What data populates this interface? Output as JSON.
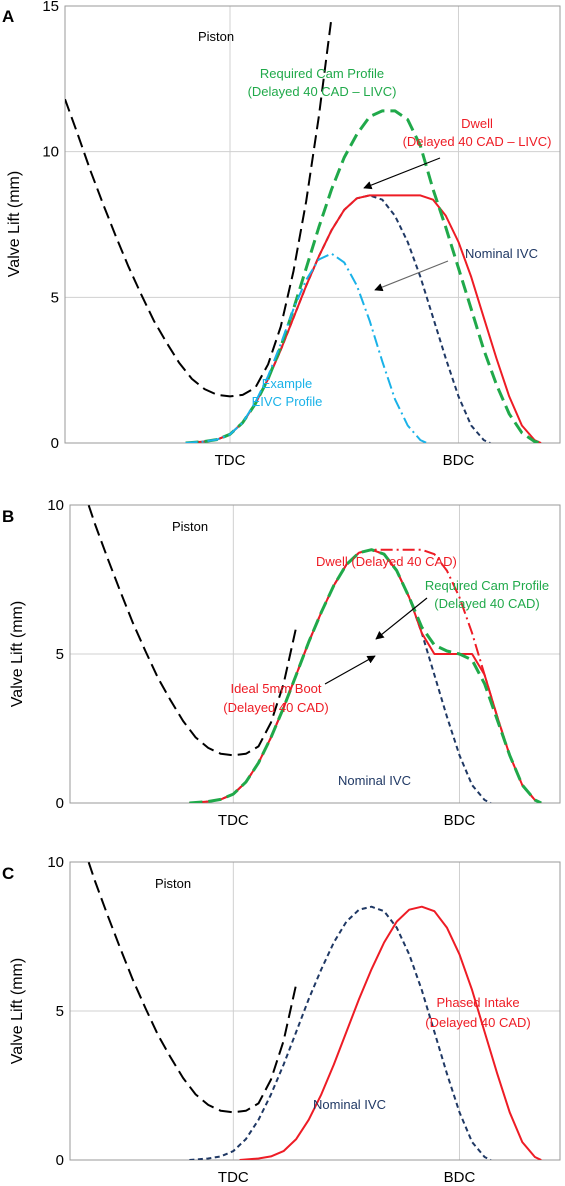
{
  "chart_data": [
    {
      "type": "line",
      "panel_label": "A",
      "ylabel": "Valve Lift (mm)",
      "ylim": [
        0,
        15
      ],
      "yticks": [
        "0",
        "5",
        "10",
        "15"
      ],
      "xlim": [
        -130,
        260
      ],
      "x_markers": [
        {
          "label": "TDC",
          "x": 0
        },
        {
          "label": "BDC",
          "x": 180
        }
      ],
      "grid": true,
      "series": [
        {
          "name": "Piston",
          "style": "long-dash",
          "color": "#000000",
          "x": [
            -130,
            -120,
            -110,
            -100,
            -90,
            -80,
            -70,
            -60,
            -50,
            -40,
            -30,
            -20,
            -10,
            0,
            10,
            20,
            30,
            40,
            50,
            60,
            70,
            80
          ],
          "y": [
            11.8,
            10.6,
            9.35,
            8.2,
            7.1,
            6.05,
            5.1,
            4.2,
            3.45,
            2.75,
            2.2,
            1.85,
            1.65,
            1.6,
            1.65,
            1.9,
            2.7,
            4.0,
            5.9,
            8.3,
            11.2,
            14.6
          ]
        },
        {
          "name": "Nominal IVC",
          "style": "short-dash",
          "color": "#1f3864",
          "x": [
            -35,
            -20,
            -10,
            0,
            10,
            20,
            30,
            40,
            50,
            60,
            70,
            80,
            90,
            100,
            110,
            120,
            130,
            140,
            150,
            160,
            170,
            180,
            190,
            200,
            205
          ],
          "y": [
            0,
            0.05,
            0.12,
            0.3,
            0.7,
            1.35,
            2.2,
            3.2,
            4.3,
            5.4,
            6.4,
            7.3,
            8.0,
            8.4,
            8.5,
            8.35,
            7.8,
            6.9,
            5.7,
            4.3,
            2.9,
            1.6,
            0.6,
            0.1,
            0
          ]
        },
        {
          "name": "Dwell (Delayed 40 CAD – LIVC)",
          "style": "solid",
          "color": "#ee1c25",
          "x": [
            -35,
            -20,
            -10,
            0,
            10,
            20,
            30,
            40,
            50,
            60,
            70,
            80,
            90,
            100,
            110,
            120,
            130,
            140,
            150,
            160,
            170,
            180,
            190,
            200,
            210,
            220,
            230,
            240,
            245
          ],
          "y": [
            0,
            0.05,
            0.12,
            0.3,
            0.7,
            1.35,
            2.2,
            3.2,
            4.3,
            5.4,
            6.4,
            7.3,
            8.0,
            8.4,
            8.5,
            8.5,
            8.5,
            8.5,
            8.5,
            8.35,
            7.8,
            6.9,
            5.7,
            4.3,
            2.9,
            1.6,
            0.6,
            0.1,
            0
          ]
        },
        {
          "name": "Required Cam Profile (Delayed 40 CAD – LIVC)",
          "style": "long-dash",
          "color": "#20a94a",
          "x": [
            -35,
            -20,
            -10,
            0,
            10,
            20,
            30,
            40,
            50,
            60,
            70,
            80,
            90,
            100,
            110,
            120,
            130,
            140,
            150,
            160,
            170,
            180,
            190,
            200,
            210,
            220,
            230,
            240,
            245
          ],
          "y": [
            0,
            0.05,
            0.12,
            0.3,
            0.7,
            1.35,
            2.2,
            3.3,
            4.6,
            6.0,
            7.4,
            8.7,
            9.8,
            10.6,
            11.2,
            11.4,
            11.4,
            11.1,
            10.2,
            8.7,
            7.4,
            6.0,
            4.6,
            3.2,
            2.0,
            1.0,
            0.35,
            0.05,
            0
          ]
        },
        {
          "name": "Example EIVC Profile",
          "style": "dash-dot",
          "color": "#1ab2e8",
          "x": [
            -35,
            -20,
            -10,
            0,
            10,
            20,
            30,
            40,
            50,
            60,
            70,
            80,
            90,
            100,
            110,
            120,
            130,
            140,
            150,
            155
          ],
          "y": [
            0,
            0.05,
            0.12,
            0.3,
            0.7,
            1.4,
            2.3,
            3.4,
            4.6,
            5.6,
            6.3,
            6.5,
            6.2,
            5.4,
            4.2,
            2.8,
            1.5,
            0.6,
            0.1,
            0
          ]
        }
      ],
      "annotations": [
        {
          "text": [
            "Piston"
          ],
          "color": "#000000"
        },
        {
          "text": [
            "Required Cam Profile",
            "(Delayed 40 CAD – LIVC)"
          ],
          "color": "#20a94a"
        },
        {
          "text": [
            "Dwell",
            "(Delayed 40 CAD – LIVC)"
          ],
          "color": "#ee1c25"
        },
        {
          "text": [
            "Nominal IVC"
          ],
          "color": "#1f3864"
        },
        {
          "text": [
            "Example",
            "EIVC Profile"
          ],
          "color": "#1ab2e8"
        }
      ]
    },
    {
      "type": "line",
      "panel_label": "B",
      "ylabel": "Valve Lift (mm)",
      "ylim": [
        0,
        10
      ],
      "yticks": [
        "0",
        "5",
        "10"
      ],
      "xlim": [
        -130,
        260
      ],
      "x_markers": [
        {
          "label": "TDC",
          "x": 0
        },
        {
          "label": "BDC",
          "x": 180
        }
      ],
      "grid": true,
      "series": [
        {
          "name": "Piston",
          "style": "long-dash",
          "color": "#000000",
          "x": [
            -130,
            -120,
            -110,
            -100,
            -90,
            -80,
            -70,
            -60,
            -50,
            -40,
            -30,
            -20,
            -10,
            0,
            10,
            20,
            30,
            40,
            50
          ],
          "y": [
            11.8,
            10.6,
            9.35,
            8.2,
            7.1,
            6.05,
            5.1,
            4.2,
            3.45,
            2.75,
            2.2,
            1.85,
            1.65,
            1.6,
            1.65,
            1.9,
            2.7,
            4.0,
            5.9
          ]
        },
        {
          "name": "Nominal IVC",
          "style": "short-dash",
          "color": "#1f3864",
          "x": [
            -35,
            -20,
            -10,
            0,
            10,
            20,
            30,
            40,
            50,
            60,
            70,
            80,
            90,
            100,
            110,
            120,
            130,
            140,
            150,
            160,
            170,
            180,
            190,
            200,
            205
          ],
          "y": [
            0,
            0.05,
            0.12,
            0.3,
            0.7,
            1.35,
            2.2,
            3.2,
            4.3,
            5.4,
            6.4,
            7.3,
            8.0,
            8.4,
            8.5,
            8.35,
            7.8,
            6.9,
            5.7,
            4.3,
            2.9,
            1.6,
            0.6,
            0.1,
            0
          ]
        },
        {
          "name": "Dwell (Delayed 40 CAD)",
          "style": "dash-dot",
          "color": "#ee1c25",
          "x": [
            100,
            110,
            120,
            130,
            140,
            150,
            160,
            170,
            180,
            190,
            200,
            210,
            220,
            230,
            240,
            245
          ],
          "y": [
            8.4,
            8.5,
            8.5,
            8.5,
            8.5,
            8.5,
            8.35,
            7.8,
            6.9,
            5.7,
            4.3,
            2.9,
            1.6,
            0.6,
            0.1,
            0
          ]
        },
        {
          "name": "Ideal 5mm Boot (Delayed 40 CAD)",
          "style": "solid",
          "color": "#ee1c25",
          "x": [
            -35,
            -20,
            -10,
            0,
            10,
            20,
            30,
            40,
            50,
            60,
            70,
            80,
            90,
            100,
            110,
            120,
            130,
            140,
            150,
            160,
            170,
            180,
            190,
            200,
            210,
            220,
            230,
            240,
            245
          ],
          "y": [
            0,
            0.05,
            0.12,
            0.3,
            0.7,
            1.35,
            2.2,
            3.2,
            4.3,
            5.4,
            6.4,
            7.3,
            8.0,
            8.4,
            8.5,
            8.35,
            7.8,
            6.9,
            5.7,
            5.0,
            5.0,
            5.0,
            5.0,
            4.3,
            2.9,
            1.6,
            0.6,
            0.1,
            0
          ]
        },
        {
          "name": "Required Cam Profile (Delayed 40 CAD)",
          "style": "long-dash",
          "color": "#20a94a",
          "x": [
            -35,
            -20,
            -10,
            0,
            10,
            20,
            30,
            40,
            50,
            60,
            70,
            80,
            90,
            100,
            110,
            120,
            130,
            140,
            150,
            160,
            170,
            180,
            190,
            200,
            210,
            220,
            230,
            240,
            245
          ],
          "y": [
            0,
            0.05,
            0.12,
            0.3,
            0.7,
            1.35,
            2.2,
            3.2,
            4.3,
            5.4,
            6.4,
            7.3,
            8.0,
            8.4,
            8.5,
            8.35,
            7.8,
            6.9,
            5.9,
            5.3,
            5.1,
            5.0,
            4.8,
            4.0,
            2.8,
            1.6,
            0.6,
            0.1,
            0
          ]
        }
      ],
      "annotations": [
        {
          "text": [
            "Piston"
          ],
          "color": "#000000"
        },
        {
          "text": [
            "Dwell (Delayed 40 CAD)"
          ],
          "color": "#ee1c25"
        },
        {
          "text": [
            "Required Cam Profile",
            "(Delayed 40 CAD)"
          ],
          "color": "#20a94a"
        },
        {
          "text": [
            "Ideal 5mm Boot",
            "(Delayed 40 CAD)"
          ],
          "color": "#ee1c25"
        },
        {
          "text": [
            "Nominal IVC"
          ],
          "color": "#1f3864"
        }
      ]
    },
    {
      "type": "line",
      "panel_label": "C",
      "ylabel": "Valve Lift (mm)",
      "ylim": [
        0,
        10
      ],
      "yticks": [
        "0",
        "5",
        "10"
      ],
      "xlim": [
        -130,
        260
      ],
      "x_markers": [
        {
          "label": "TDC",
          "x": 0
        },
        {
          "label": "BDC",
          "x": 180
        }
      ],
      "grid": true,
      "series": [
        {
          "name": "Piston",
          "style": "long-dash",
          "color": "#000000",
          "x": [
            -130,
            -120,
            -110,
            -100,
            -90,
            -80,
            -70,
            -60,
            -50,
            -40,
            -30,
            -20,
            -10,
            0,
            10,
            20,
            30,
            40,
            50
          ],
          "y": [
            11.8,
            10.6,
            9.35,
            8.2,
            7.1,
            6.05,
            5.1,
            4.2,
            3.45,
            2.75,
            2.2,
            1.85,
            1.65,
            1.6,
            1.65,
            1.9,
            2.7,
            4.0,
            5.9
          ]
        },
        {
          "name": "Nominal IVC",
          "style": "short-dash",
          "color": "#1f3864",
          "x": [
            -35,
            -20,
            -10,
            0,
            10,
            20,
            30,
            40,
            50,
            60,
            70,
            80,
            90,
            100,
            110,
            120,
            130,
            140,
            150,
            160,
            170,
            180,
            190,
            200,
            205
          ],
          "y": [
            0,
            0.05,
            0.12,
            0.3,
            0.7,
            1.35,
            2.2,
            3.2,
            4.3,
            5.4,
            6.4,
            7.3,
            8.0,
            8.4,
            8.5,
            8.35,
            7.8,
            6.9,
            5.7,
            4.3,
            2.9,
            1.6,
            0.6,
            0.1,
            0
          ]
        },
        {
          "name": "Phased Intake (Delayed 40 CAD)",
          "style": "solid",
          "color": "#ee1c25",
          "x": [
            5,
            20,
            30,
            40,
            50,
            60,
            70,
            80,
            90,
            100,
            110,
            120,
            130,
            140,
            150,
            160,
            170,
            180,
            190,
            200,
            210,
            220,
            230,
            240,
            245
          ],
          "y": [
            0,
            0.05,
            0.12,
            0.3,
            0.7,
            1.35,
            2.2,
            3.2,
            4.3,
            5.4,
            6.4,
            7.3,
            8.0,
            8.4,
            8.5,
            8.35,
            7.8,
            6.9,
            5.7,
            4.3,
            2.9,
            1.6,
            0.6,
            0.1,
            0
          ]
        }
      ],
      "annotations": [
        {
          "text": [
            "Piston"
          ],
          "color": "#000000"
        },
        {
          "text": [
            "Phased Intake",
            "(Delayed 40 CAD)"
          ],
          "color": "#ee1c25"
        },
        {
          "text": [
            "Nominal IVC"
          ],
          "color": "#1f3864"
        }
      ]
    }
  ]
}
